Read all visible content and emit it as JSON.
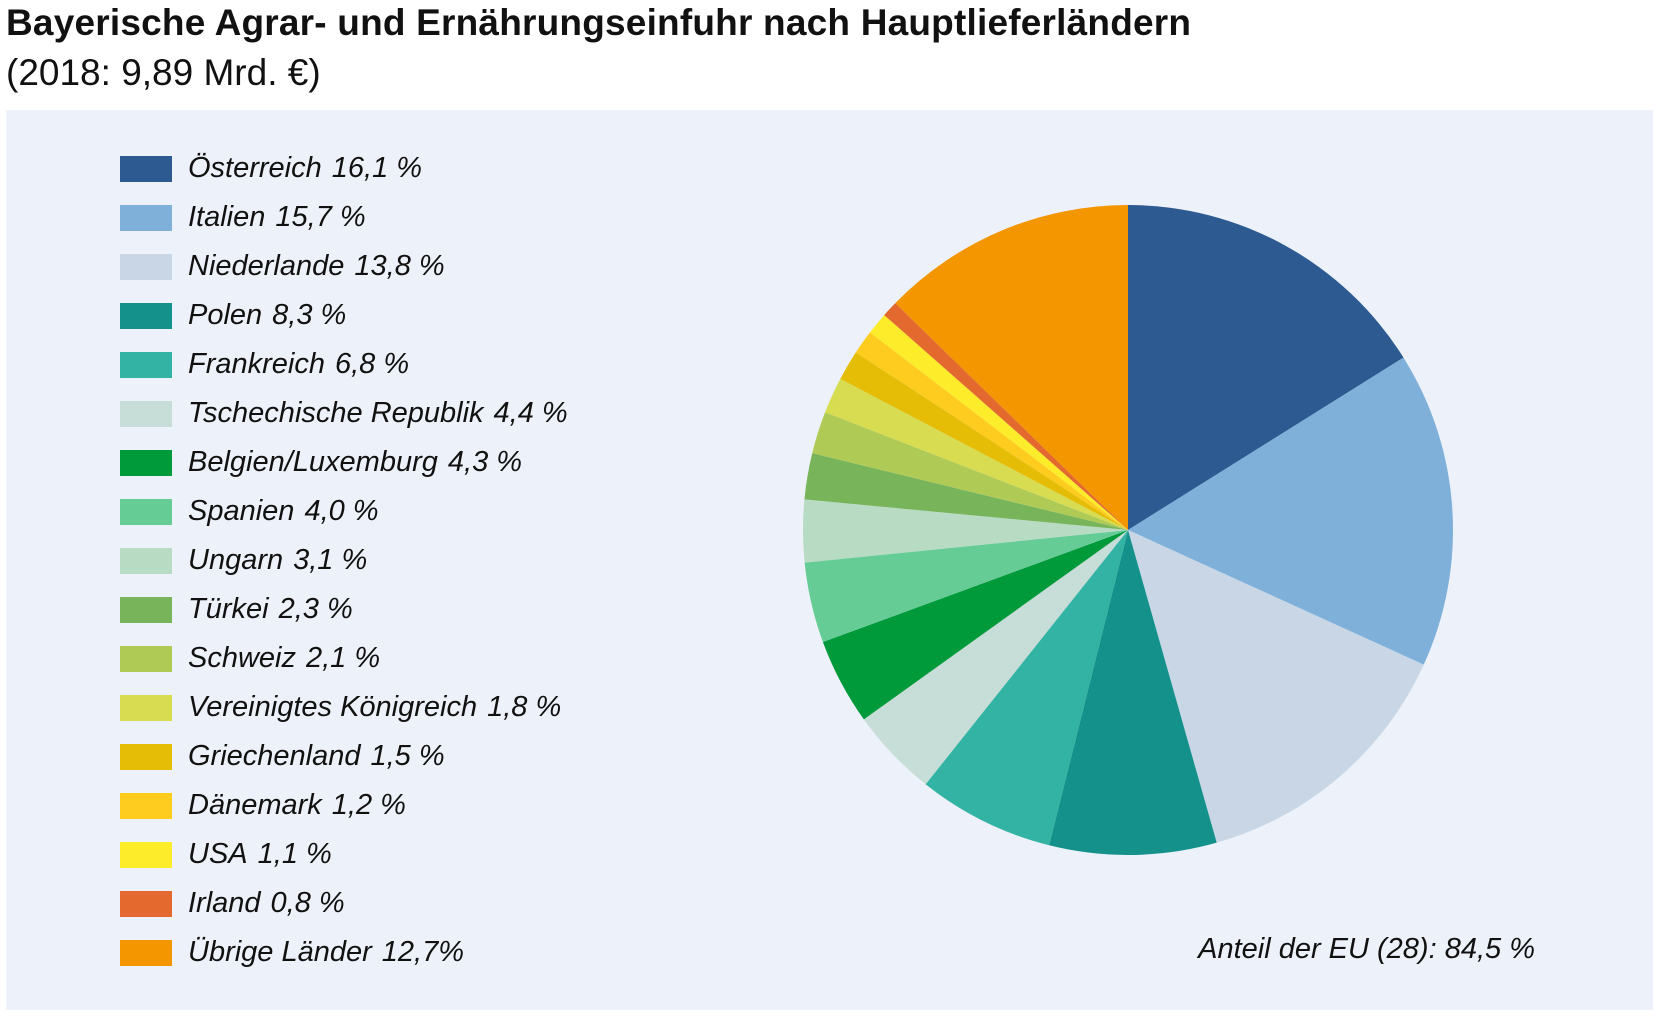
{
  "title": "Bayerische Agrar- und Ernährungseinfuhr nach Hauptlieferländern",
  "subtitle": "(2018: 9,89 Mrd. €)",
  "note": "Anteil der EU (28): 84,5 %",
  "chart_data": {
    "type": "pie",
    "start_angle_deg": 0,
    "direction": "clockwise",
    "slices": [
      {
        "label": "Österreich",
        "value": 16.1,
        "display": "16,1 %",
        "color": "#2c5a91"
      },
      {
        "label": "Italien",
        "value": 15.7,
        "display": "15,7 %",
        "color": "#7fb0da"
      },
      {
        "label": "Niederlande",
        "value": 13.8,
        "display": "13,8 %",
        "color": "#c8d6e5"
      },
      {
        "label": "Polen",
        "value": 8.3,
        "display": "8,3 %",
        "color": "#13918a"
      },
      {
        "label": "Frankreich",
        "value": 6.8,
        "display": "6,8 %",
        "color": "#32b3a4"
      },
      {
        "label": "Tschechische Republik",
        "value": 4.4,
        "display": "4,4 %",
        "color": "#c6ddd8"
      },
      {
        "label": "Belgien/Luxemburg",
        "value": 4.3,
        "display": "4,3 %",
        "color": "#009a3a"
      },
      {
        "label": "Spanien",
        "value": 4.0,
        "display": "4,0 %",
        "color": "#66cc96"
      },
      {
        "label": "Ungarn",
        "value": 3.1,
        "display": "3,1 %",
        "color": "#b7dcc3"
      },
      {
        "label": "Türkei",
        "value": 2.3,
        "display": "2,3 %",
        "color": "#78b55a"
      },
      {
        "label": "Schweiz",
        "value": 2.1,
        "display": "2,1 %",
        "color": "#afca55"
      },
      {
        "label": "Vereinigtes Königreich",
        "value": 1.8,
        "display": "1,8 %",
        "color": "#d7dc50"
      },
      {
        "label": "Griechenland",
        "value": 1.5,
        "display": "1,5 %",
        "color": "#e5bd06"
      },
      {
        "label": "Dänemark",
        "value": 1.2,
        "display": "1,2 %",
        "color": "#fecb1f"
      },
      {
        "label": "USA",
        "value": 1.1,
        "display": "1,1 %",
        "color": "#fcec2a"
      },
      {
        "label": "Irland",
        "value": 0.8,
        "display": "0,8 %",
        "color": "#e4692e"
      },
      {
        "label": "Übrige Länder",
        "value": 12.7,
        "display": "12,7%",
        "color": "#f39600"
      }
    ]
  }
}
